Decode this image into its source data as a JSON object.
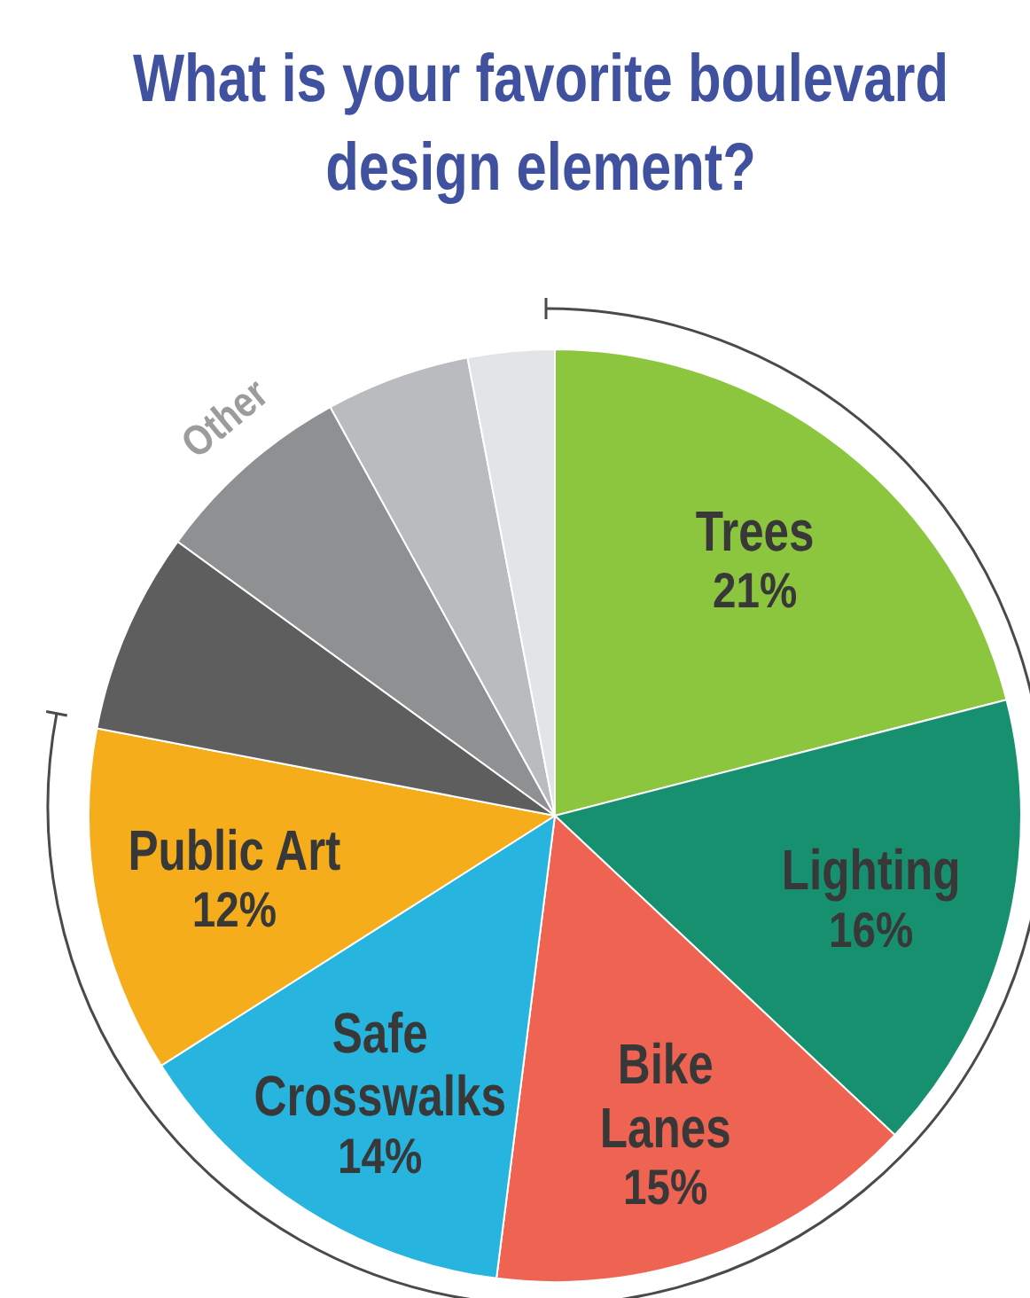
{
  "chart_data": {
    "type": "pie",
    "title": "What is your favorite boulevard design element?",
    "categories": [
      "Trees",
      "Lighting",
      "Bike\nLanes",
      "Safe\nCrosswalks",
      "Public Art",
      null,
      null,
      null,
      null
    ],
    "values": [
      21,
      16,
      15,
      14,
      12,
      7,
      7,
      5,
      3
    ],
    "colors": [
      "#8cc63e",
      "#16906f",
      "#ee6352",
      "#27b5df",
      "#f6ad1b",
      "#5e5e5f",
      "#8f9092",
      "#babbbe",
      "#e3e4e6"
    ],
    "value_labels": [
      "21%",
      "16%",
      "15%",
      "14%",
      "12%",
      null,
      null,
      null,
      null
    ],
    "annotations": [
      "Other"
    ]
  }
}
